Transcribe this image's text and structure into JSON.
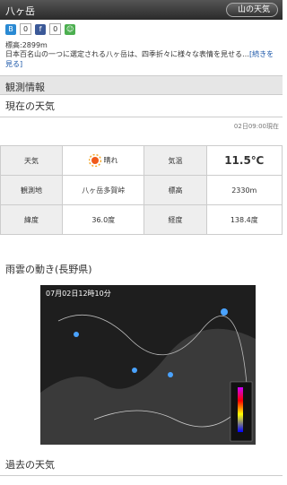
{
  "header": {
    "title": "八ヶ岳",
    "button": "山の天気"
  },
  "social": {
    "hatena_count": "0",
    "facebook_count": "0"
  },
  "mountain": {
    "elevation": "標高:2899m",
    "description": "日本百名山の一つに選定される八ヶ岳は、四季折々に様々な表情を見せる…",
    "read_more": "[続きを見る]"
  },
  "observation": {
    "section_title": "観測情報",
    "current_heading": "現在の天気",
    "time": "02日09:00現在",
    "table": [
      [
        "天気",
        "晴れ",
        "気温",
        "11.5℃"
      ],
      [
        "観測地",
        "八ヶ岳多賀峠",
        "標高",
        "2330m"
      ],
      [
        "緯度",
        "36.0度",
        "経度",
        "138.4度"
      ]
    ]
  },
  "radar": {
    "heading": "雨雲の動き(長野県)",
    "time": "07月02日12時10分"
  },
  "past": {
    "heading": "過去の天気"
  }
}
